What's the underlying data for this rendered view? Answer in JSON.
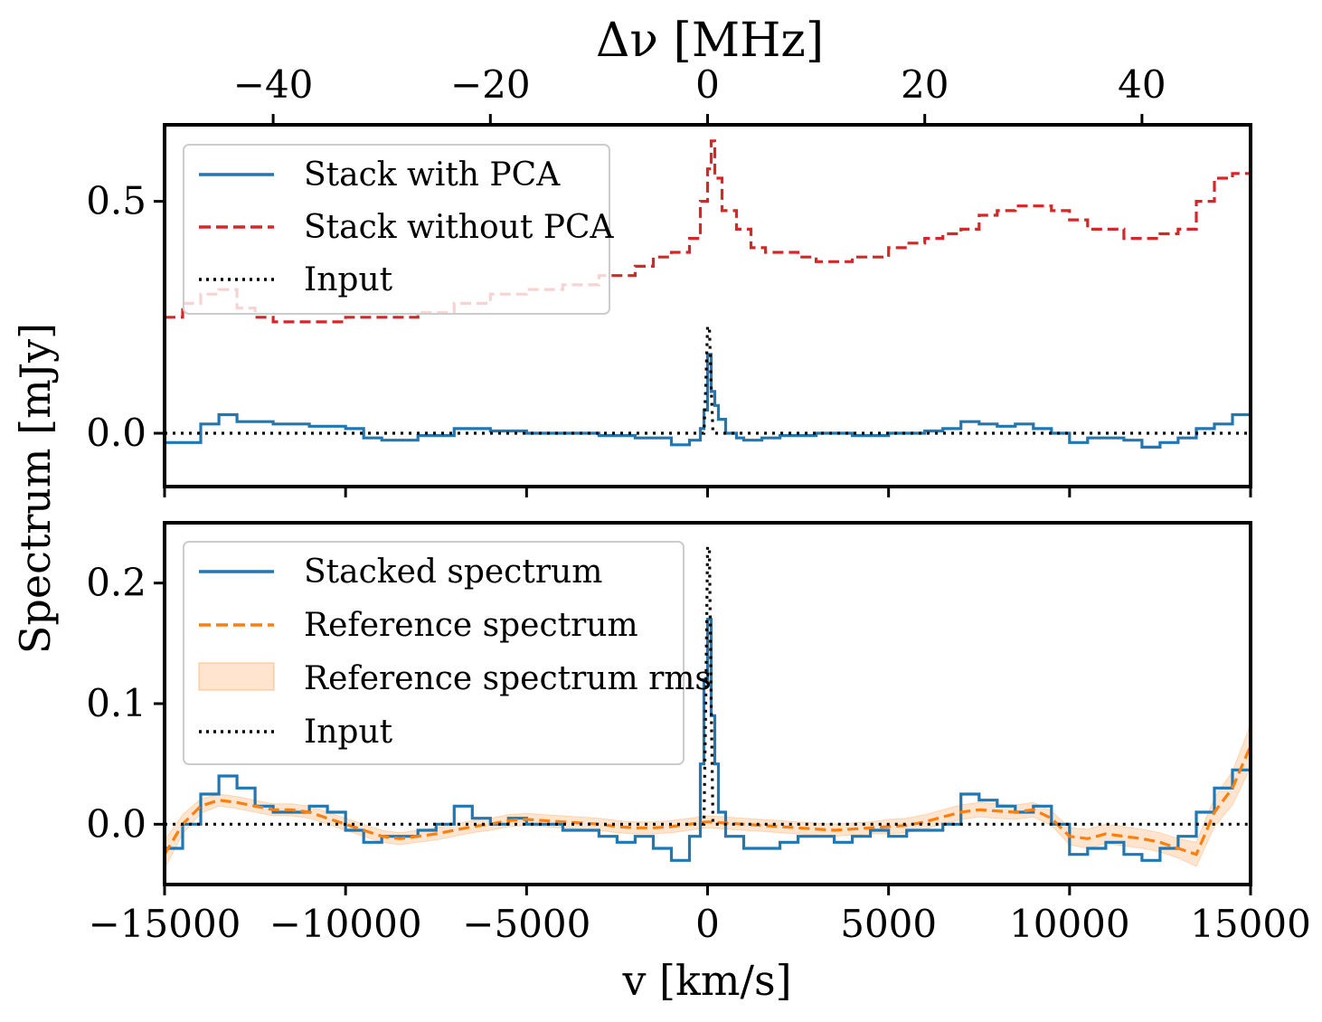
{
  "figure": {
    "ylabel": "Spectrum [mJy]",
    "xlabel": "v [km/s]",
    "top_xlabel": "Δν [MHz]"
  },
  "chart_data": [
    {
      "type": "line",
      "panel": "top",
      "title": "",
      "xlabel": "v [km/s]",
      "top_axis": {
        "label": "Δν [MHz]",
        "ticks": [
          -40,
          -20,
          0,
          20,
          40
        ],
        "tick_labels": [
          "−40",
          "−20",
          "0",
          "20",
          "40"
        ],
        "x_at_ticks_kms": [
          -12000,
          -6000,
          0,
          6000,
          12000
        ]
      },
      "ylabel": "Spectrum [mJy]",
      "xlim": [
        -15000,
        15000
      ],
      "ylim": [
        -0.115,
        0.665
      ],
      "yticks": [
        0.0,
        0.5
      ],
      "ytick_labels": [
        "0.0",
        "0.5"
      ],
      "legend_position": "upper-left",
      "series": [
        {
          "name": "Stack with PCA",
          "style": "solid-step",
          "color": "#1f77b4",
          "x": [
            -15000,
            -14000,
            -13500,
            -13000,
            -12000,
            -11000,
            -10000,
            -9500,
            -9000,
            -8000,
            -7000,
            -6000,
            -5000,
            -4000,
            -3000,
            -2000,
            -1000,
            -500,
            -200,
            -100,
            0,
            100,
            200,
            300,
            500,
            800,
            1000,
            1500,
            2000,
            3000,
            4000,
            5000,
            6000,
            6500,
            7000,
            7500,
            8000,
            8500,
            9000,
            9500,
            10000,
            10500,
            11000,
            11500,
            12000,
            12500,
            13000,
            13500,
            14000,
            14500,
            15000
          ],
          "y": [
            -0.02,
            0.02,
            0.04,
            0.025,
            0.02,
            0.015,
            0.01,
            -0.01,
            -0.015,
            -0.005,
            0.01,
            0.005,
            0.0,
            0.0,
            -0.005,
            -0.01,
            -0.025,
            -0.015,
            0.01,
            0.05,
            0.17,
            0.09,
            0.06,
            0.03,
            0.0,
            -0.01,
            -0.015,
            -0.01,
            -0.005,
            0.0,
            -0.005,
            0.0,
            0.005,
            0.01,
            0.025,
            0.02,
            0.015,
            0.02,
            0.01,
            0.0,
            -0.02,
            -0.01,
            -0.01,
            -0.015,
            -0.03,
            -0.02,
            -0.01,
            0.01,
            0.02,
            0.04,
            0.04
          ]
        },
        {
          "name": "Stack without PCA",
          "style": "dashed-step",
          "color": "#d62728",
          "x": [
            -15000,
            -14500,
            -14000,
            -13500,
            -13000,
            -12500,
            -12000,
            -11000,
            -10000,
            -9000,
            -8000,
            -7000,
            -6000,
            -5000,
            -4000,
            -3000,
            -2000,
            -1500,
            -1000,
            -500,
            -200,
            0,
            100,
            200,
            400,
            800,
            1200,
            1600,
            2000,
            2500,
            3000,
            4000,
            5000,
            5500,
            6000,
            6500,
            7000,
            7500,
            8000,
            8500,
            9000,
            9500,
            10000,
            10500,
            11000,
            11500,
            12000,
            12500,
            13000,
            13500,
            14000,
            14500,
            15000
          ],
          "y": [
            0.25,
            0.28,
            0.3,
            0.31,
            0.27,
            0.25,
            0.24,
            0.24,
            0.25,
            0.25,
            0.26,
            0.28,
            0.3,
            0.31,
            0.32,
            0.34,
            0.36,
            0.38,
            0.39,
            0.42,
            0.5,
            0.57,
            0.63,
            0.55,
            0.48,
            0.44,
            0.4,
            0.39,
            0.39,
            0.38,
            0.37,
            0.38,
            0.4,
            0.41,
            0.42,
            0.43,
            0.44,
            0.47,
            0.48,
            0.49,
            0.49,
            0.48,
            0.46,
            0.44,
            0.44,
            0.42,
            0.42,
            0.43,
            0.44,
            0.5,
            0.55,
            0.56,
            0.54
          ]
        },
        {
          "name": "Input",
          "style": "dotted",
          "color": "#000000",
          "x": [
            -15000,
            -100,
            -50,
            0,
            50,
            100,
            150,
            15000
          ],
          "y": [
            0.0,
            0.0,
            0.1,
            0.23,
            0.23,
            0.1,
            0.0,
            0.0
          ]
        }
      ]
    },
    {
      "type": "line",
      "panel": "bottom",
      "title": "",
      "xlabel": "v [km/s]",
      "xlim": [
        -15000,
        15000
      ],
      "xticks": [
        -15000,
        -10000,
        -5000,
        0,
        5000,
        10000,
        15000
      ],
      "xtick_labels": [
        "−15000",
        "−10000",
        "−5000",
        "0",
        "5000",
        "10000",
        "15000"
      ],
      "ylabel": "Spectrum [mJy]",
      "ylim": [
        -0.05,
        0.25
      ],
      "yticks": [
        0.0,
        0.1,
        0.2
      ],
      "ytick_labels": [
        "0.0",
        "0.1",
        "0.2"
      ],
      "legend_position": "upper-left",
      "series": [
        {
          "name": "Stacked spectrum",
          "style": "solid-step",
          "color": "#1f77b4",
          "x": [
            -15000,
            -14500,
            -14000,
            -13500,
            -13000,
            -12500,
            -12000,
            -11500,
            -11000,
            -10500,
            -10000,
            -9500,
            -9000,
            -8500,
            -8000,
            -7500,
            -7000,
            -6500,
            -6000,
            -5500,
            -5000,
            -4500,
            -4000,
            -3500,
            -3000,
            -2500,
            -2000,
            -1500,
            -1000,
            -500,
            -200,
            -100,
            0,
            100,
            200,
            300,
            500,
            1000,
            1500,
            2000,
            2500,
            3000,
            3500,
            4000,
            4500,
            5000,
            5500,
            6000,
            6500,
            7000,
            7500,
            8000,
            8500,
            9000,
            9500,
            10000,
            10500,
            11000,
            11500,
            12000,
            12500,
            13000,
            13500,
            14000,
            14500,
            15000
          ],
          "y": [
            -0.02,
            0.0,
            0.025,
            0.04,
            0.03,
            0.015,
            0.01,
            0.01,
            0.015,
            0.01,
            -0.005,
            -0.015,
            -0.01,
            -0.01,
            -0.005,
            0.0,
            0.015,
            0.005,
            0.0,
            0.005,
            0.0,
            0.0,
            -0.005,
            -0.005,
            -0.01,
            -0.015,
            -0.01,
            -0.02,
            -0.03,
            -0.01,
            0.05,
            0.12,
            0.17,
            0.09,
            0.05,
            0.01,
            -0.01,
            -0.02,
            -0.02,
            -0.015,
            -0.01,
            -0.01,
            -0.015,
            -0.01,
            -0.005,
            -0.01,
            -0.005,
            -0.005,
            0.0,
            0.025,
            0.02,
            0.015,
            0.01,
            0.015,
            0.0,
            -0.025,
            -0.02,
            -0.015,
            -0.025,
            -0.03,
            -0.02,
            -0.01,
            0.01,
            0.03,
            0.045,
            0.04
          ]
        },
        {
          "name": "Reference spectrum",
          "style": "dashed",
          "color": "#ff7f0e",
          "x": [
            -15000,
            -14500,
            -14000,
            -13500,
            -13000,
            -12500,
            -12000,
            -11500,
            -11000,
            -10500,
            -10000,
            -9500,
            -9000,
            -8500,
            -8000,
            -7500,
            -7000,
            -6500,
            -6000,
            -5500,
            -5000,
            -4500,
            -4000,
            -3500,
            -3000,
            -2500,
            -2000,
            -1500,
            -1000,
            -500,
            0,
            500,
            1000,
            1500,
            2000,
            2500,
            3000,
            3500,
            4000,
            4500,
            5000,
            5500,
            6000,
            6500,
            7000,
            7500,
            8000,
            8500,
            9000,
            9500,
            10000,
            10500,
            11000,
            11500,
            12000,
            12500,
            13000,
            13500,
            14000,
            14500,
            15000
          ],
          "y": [
            -0.025,
            0.0,
            0.015,
            0.02,
            0.018,
            0.015,
            0.012,
            0.012,
            0.01,
            0.005,
            0.0,
            -0.005,
            -0.01,
            -0.012,
            -0.01,
            -0.008,
            -0.005,
            -0.002,
            0.0,
            0.003,
            0.004,
            0.003,
            0.002,
            0.001,
            0.0,
            -0.002,
            -0.003,
            -0.003,
            -0.002,
            0.0,
            0.002,
            0.001,
            0.0,
            -0.001,
            -0.002,
            -0.003,
            -0.004,
            -0.005,
            -0.004,
            -0.003,
            -0.002,
            -0.001,
            0.002,
            0.006,
            0.01,
            0.012,
            0.011,
            0.01,
            0.012,
            0.005,
            -0.01,
            -0.012,
            -0.008,
            -0.01,
            -0.012,
            -0.015,
            -0.02,
            -0.025,
            0.01,
            0.03,
            0.065
          ]
        },
        {
          "name": "Reference spectrum rms",
          "style": "band",
          "color": "#ff7f0e",
          "alpha": 0.2,
          "half_width": [
            0.012,
            0.008,
            0.006,
            0.005,
            0.005,
            0.005,
            0.005,
            0.005,
            0.005,
            0.005,
            0.005,
            0.005,
            0.005,
            0.005,
            0.005,
            0.005,
            0.005,
            0.005,
            0.005,
            0.005,
            0.005,
            0.005,
            0.005,
            0.005,
            0.005,
            0.005,
            0.005,
            0.005,
            0.005,
            0.005,
            0.005,
            0.005,
            0.005,
            0.005,
            0.005,
            0.005,
            0.005,
            0.005,
            0.005,
            0.005,
            0.006,
            0.006,
            0.006,
            0.006,
            0.006,
            0.006,
            0.006,
            0.006,
            0.006,
            0.006,
            0.007,
            0.008,
            0.008,
            0.008,
            0.008,
            0.008,
            0.008,
            0.01,
            0.012,
            0.014,
            0.018
          ]
        },
        {
          "name": "Input",
          "style": "dotted",
          "color": "#000000",
          "x": [
            -15000,
            -100,
            -50,
            0,
            50,
            100,
            150,
            15000
          ],
          "y": [
            0.0,
            0.0,
            0.1,
            0.23,
            0.23,
            0.1,
            0.0,
            0.0
          ]
        }
      ]
    }
  ]
}
